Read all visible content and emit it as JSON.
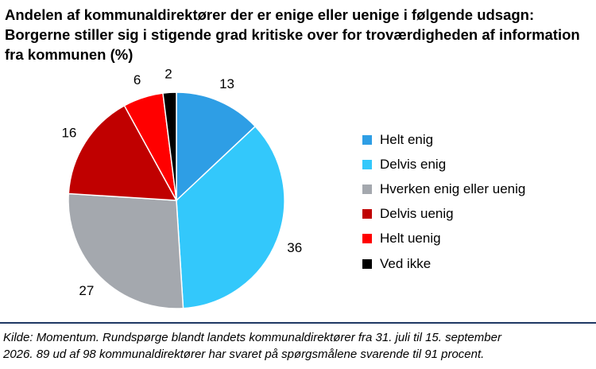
{
  "title_lines": [
    "Andelen af kommunaldirektører der er enige eller uenige i følgende udsagn:",
    "Borgerne stiller sig i stigende grad kritiske over for troværdigheden af information",
    "fra kommunen (%)"
  ],
  "chart_data": {
    "type": "pie",
    "title": "Andelen af kommunaldirektører der er enige eller uenige i følgende udsagn: Borgerne stiller sig i stigende grad kritiske over for troværdigheden af information fra kommunen (%)",
    "categories": [
      "Helt enig",
      "Delvis enig",
      "Hverken enig eller uenig",
      "Delvis uenig",
      "Helt uenig",
      "Ved ikke"
    ],
    "values": [
      13,
      36,
      27,
      16,
      6,
      2
    ],
    "colors": [
      "#2e9ee5",
      "#33c8fb",
      "#a4a8ae",
      "#c00000",
      "#ff0000",
      "#000000"
    ],
    "legend_position": "right"
  },
  "source_lines": [
    "Kilde: Momentum. Rundspørge blandt landets kommunaldirektører fra 31. juli til 15. september",
    "2026. 89 ud af 98 kommunaldirektører har svaret på spørgsmålene svarende til 91 procent."
  ]
}
